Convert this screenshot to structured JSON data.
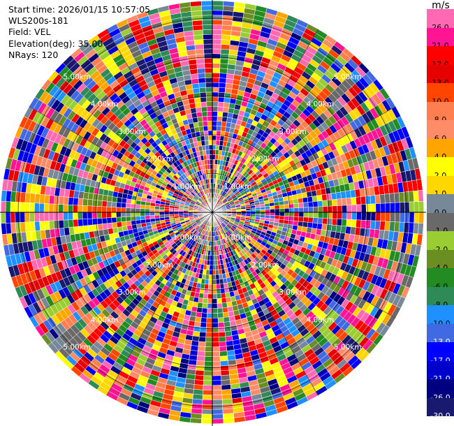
{
  "header": {
    "start_time": "Start time: 2026/01/15 10:57:05",
    "instrument": "WLS200s-181",
    "field": "Field: VEL",
    "elevation": "Elevation(deg): 35.00",
    "nrays": "NRays: 120"
  },
  "chart_data": {
    "type": "heatmap",
    "subtype": "polar PPI",
    "field": "VEL",
    "unit": "m/s",
    "rays": 120,
    "range_rings_km": [
      1,
      2,
      3,
      4,
      5
    ],
    "ring_label_suffix": "km",
    "max_range_km": 5.45,
    "colorbar": {
      "ticks": [
        "26.0",
        "21.0",
        "17.0",
        "13.0",
        "10.0",
        "8.0",
        "6.0",
        "4.0",
        "2.0",
        "1.0",
        "0.0",
        "-1.0",
        "-2.0",
        "-4.0",
        "-6.0",
        "-8.0",
        "-10.0",
        "-13.0",
        "-17.0",
        "-21.0",
        "-26.0",
        "-30.0"
      ],
      "colors": [
        "#ff69b4",
        "#ff1493",
        "#ff0000",
        "#e60000",
        "#ff4500",
        "#ff7f50",
        "#ff8c69",
        "#ffa500",
        "#ffff00",
        "#ffd700",
        "#778899",
        "#696969",
        "#9acd32",
        "#6b8e23",
        "#228b22",
        "#2e8b57",
        "#1e90ff",
        "#4169e1",
        "#0000ff",
        "#0000cd",
        "#000080",
        "#191970"
      ]
    },
    "grid": true
  }
}
